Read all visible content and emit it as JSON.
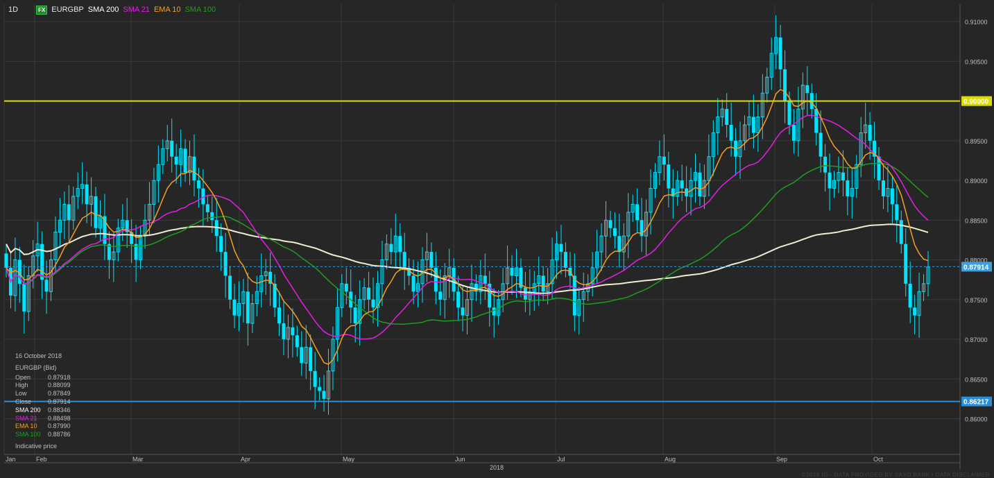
{
  "toolbar": {
    "timeframe": "1D",
    "fx_badge": "FX",
    "symbol": "EURGBP",
    "indicators": [
      {
        "label": "SMA 200",
        "color": "#ffffff"
      },
      {
        "label": "SMA 21",
        "color": "#e61ee6"
      },
      {
        "label": "EMA 10",
        "color": "#f5a023"
      },
      {
        "label": "SMA 100",
        "color": "#1e9e1e"
      }
    ]
  },
  "info": {
    "date": "16 October 2018",
    "instrument": "EURGBP (Bid)",
    "rows": [
      {
        "label": "Open",
        "value": "0.87918"
      },
      {
        "label": "High",
        "value": "0.88099"
      },
      {
        "label": "Low",
        "value": "0.87849"
      },
      {
        "label": "Close",
        "value": "0.87914"
      },
      {
        "label": "SMA 200",
        "value": "0.88346"
      },
      {
        "label": "SMA 21",
        "value": "0.88498"
      },
      {
        "label": "EMA 10",
        "value": "0.87990"
      },
      {
        "label": "SMA 100",
        "value": "0.88786"
      }
    ],
    "footer": "Indicative price"
  },
  "copyright": "©2018 IG - DATA PROVIDED BY SAXO BANK / DATA DISCLAIMER",
  "colors": {
    "background": "#262626",
    "grid": "#3a3a3a",
    "bull": "#00e5ff",
    "sma200": "#f0ecd2",
    "sma21": "#e61ee6",
    "ema10": "#f5a023",
    "sma100": "#1e9e1e",
    "resistance": "#dcdc00",
    "support": "#2a8fd8",
    "current": "#3aa0e0"
  },
  "chart_data": {
    "type": "candlestick",
    "instrument": "EURGBP",
    "timeframe": "1D",
    "year_label": "2018",
    "y_range": [
      0.8555,
      0.9122
    ],
    "y_ticks": [
      "0.91000",
      "0.90500",
      "0.90000",
      "0.89500",
      "0.89000",
      "0.88500",
      "0.88000",
      "0.87500",
      "0.87000",
      "0.86500",
      "0.86000"
    ],
    "x_months": [
      "Jan",
      "Feb",
      "Mar",
      "Apr",
      "May",
      "Jun",
      "Jul",
      "Aug",
      "Sep",
      "Oct"
    ],
    "horizontal_levels": [
      {
        "label": "0.90000",
        "value": 0.9,
        "style": "resistance"
      },
      {
        "label": "0.86217",
        "value": 0.86217,
        "style": "support"
      },
      {
        "label": "0.87914",
        "value": 0.87914,
        "style": "current"
      }
    ],
    "indicator_last_values": {
      "SMA 200": 0.88346,
      "SMA 21": 0.88498,
      "EMA 10": 0.8799,
      "SMA 100": 0.88786
    },
    "series_close": [
      0.879,
      0.8755,
      0.88,
      0.877,
      0.8735,
      0.878,
      0.8805,
      0.882,
      0.8775,
      0.876,
      0.88,
      0.8835,
      0.885,
      0.887,
      0.885,
      0.888,
      0.889,
      0.8895,
      0.887,
      0.888,
      0.884,
      0.8855,
      0.882,
      0.88,
      0.881,
      0.884,
      0.885,
      0.8835,
      0.882,
      0.88,
      0.883,
      0.885,
      0.887,
      0.89,
      0.892,
      0.894,
      0.895,
      0.893,
      0.892,
      0.894,
      0.891,
      0.893,
      0.89,
      0.889,
      0.887,
      0.886,
      0.885,
      0.883,
      0.881,
      0.878,
      0.875,
      0.873,
      0.8745,
      0.876,
      0.872,
      0.8745,
      0.876,
      0.878,
      0.8785,
      0.877,
      0.874,
      0.872,
      0.87,
      0.8715,
      0.8705,
      0.869,
      0.867,
      0.869,
      0.866,
      0.864,
      0.8635,
      0.8625,
      0.866,
      0.87,
      0.874,
      0.877,
      0.876,
      0.874,
      0.872,
      0.875,
      0.8765,
      0.875,
      0.874,
      0.877,
      0.88,
      0.882,
      0.881,
      0.883,
      0.881,
      0.879,
      0.878,
      0.876,
      0.877,
      0.88,
      0.881,
      0.879,
      0.876,
      0.875,
      0.878,
      0.879,
      0.876,
      0.874,
      0.873,
      0.875,
      0.877,
      0.876,
      0.878,
      0.877,
      0.874,
      0.873,
      0.875,
      0.877,
      0.879,
      0.878,
      0.879,
      0.8765,
      0.875,
      0.876,
      0.877,
      0.878,
      0.876,
      0.877,
      0.88,
      0.882,
      0.881,
      0.879,
      0.878,
      0.873,
      0.875,
      0.876,
      0.877,
      0.879,
      0.881,
      0.883,
      0.885,
      0.884,
      0.883,
      0.881,
      0.883,
      0.886,
      0.887,
      0.885,
      0.883,
      0.886,
      0.889,
      0.891,
      0.893,
      0.892,
      0.889,
      0.888,
      0.89,
      0.889,
      0.888,
      0.89,
      0.891,
      0.888,
      0.89,
      0.893,
      0.896,
      0.898,
      0.899,
      0.897,
      0.895,
      0.893,
      0.895,
      0.897,
      0.898,
      0.896,
      0.898,
      0.901,
      0.903,
      0.906,
      0.908,
      0.904,
      0.9,
      0.897,
      0.895,
      0.899,
      0.902,
      0.901,
      0.899,
      0.896,
      0.893,
      0.891,
      0.889,
      0.89,
      0.891,
      0.89,
      0.888,
      0.889,
      0.892,
      0.896,
      0.897,
      0.895,
      0.893,
      0.89,
      0.888,
      0.889,
      0.887,
      0.885,
      0.882,
      0.877,
      0.874,
      0.873,
      0.876,
      0.877,
      0.8791
    ]
  }
}
